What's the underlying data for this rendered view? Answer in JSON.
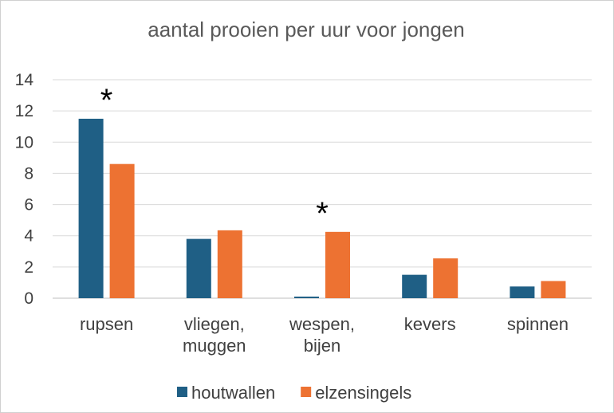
{
  "chart_data": {
    "type": "bar",
    "title": "aantal prooien per uur voor jongen",
    "categories": [
      [
        "rupsen"
      ],
      [
        "vliegen,",
        "muggen"
      ],
      [
        "wespen,",
        "bijen"
      ],
      [
        "kevers"
      ],
      [
        "spinnen"
      ]
    ],
    "series": [
      {
        "name": "houtwallen",
        "color": "#1f5f85",
        "values": [
          11.5,
          3.8,
          0.1,
          1.5,
          0.75
        ]
      },
      {
        "name": "elzensingels",
        "color": "#ed7232",
        "values": [
          8.6,
          4.35,
          4.25,
          2.55,
          1.1
        ]
      }
    ],
    "ylim": [
      0,
      14
    ],
    "yticks": [
      "0",
      "2",
      "4",
      "6",
      "8",
      "10",
      "12",
      "14"
    ],
    "grid": true,
    "legend": "bottom",
    "annotations": [
      {
        "text": "*",
        "category_index": 0
      },
      {
        "text": "*",
        "category_index": 2
      }
    ]
  }
}
